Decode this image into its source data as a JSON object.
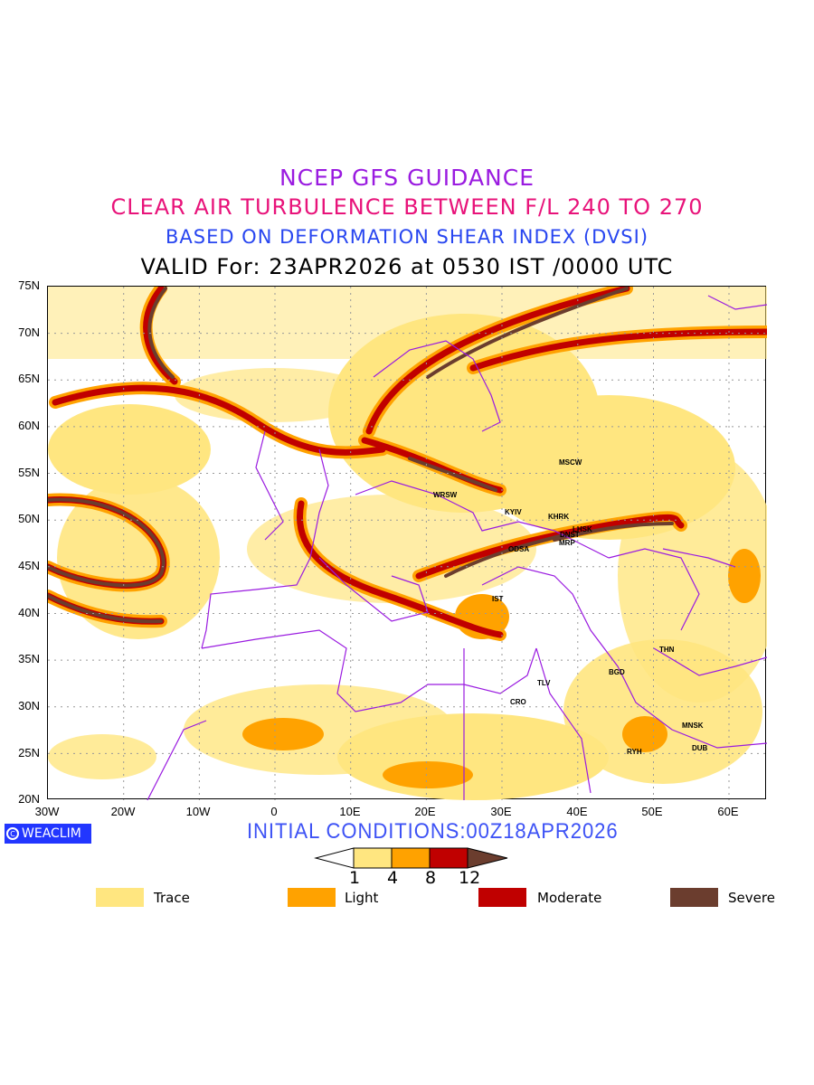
{
  "titles": {
    "line1": "NCEP GFS GUIDANCE",
    "line2": "CLEAR AIR TURBULENCE BETWEEN F/L 240 TO 270",
    "line3": "BASED ON DEFORMATION SHEAR INDEX (DVSI)",
    "line4": "VALID For: 23APR2026 at 0530 IST /0000 UTC"
  },
  "axes": {
    "lat_labels": [
      "75N",
      "70N",
      "65N",
      "60N",
      "55N",
      "50N",
      "45N",
      "40N",
      "35N",
      "30N",
      "25N",
      "20N"
    ],
    "lon_labels": [
      "30W",
      "20W",
      "10W",
      "0",
      "10E",
      "20E",
      "30E",
      "40E",
      "50E",
      "60E"
    ]
  },
  "cities": [
    "MSCW",
    "WRSW",
    "KYIV",
    "KHRK",
    "LHSK",
    "DNST",
    "MRP",
    "ODSA",
    "IST",
    "THN",
    "BGD",
    "TLV",
    "CRO",
    "MNSK",
    "RYH",
    "DUB"
  ],
  "logo": {
    "icon": "copyright-icon",
    "text": "WEACLIM"
  },
  "initial_conditions": "INITIAL CONDITIONS:00Z18APR2026",
  "colorbar": {
    "ticks": [
      "1",
      "4",
      "8",
      "12"
    ]
  },
  "legend": [
    {
      "label": "Trace",
      "color": "#ffe680"
    },
    {
      "label": "Light",
      "color": "#ffa200"
    },
    {
      "label": "Moderate",
      "color": "#c00000"
    },
    {
      "label": "Severe",
      "color": "#6b3d2e"
    }
  ]
}
